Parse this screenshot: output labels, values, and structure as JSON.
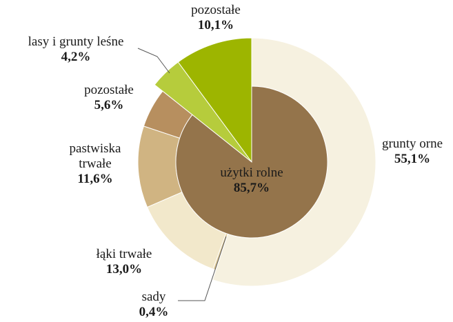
{
  "chart_data": {
    "type": "sunburst",
    "inner": {
      "labels": [
        "użytki rolne"
      ],
      "values": [
        85.7
      ],
      "value_labels": [
        "85,7%"
      ],
      "colors": [
        "#94744b"
      ]
    },
    "outer": {
      "labels": [
        "grunty orne",
        "sady",
        "łąki trwałe",
        "pastwiska trwałe",
        "pozostałe",
        "lasy i grunty leśne",
        "pozostałe"
      ],
      "values": [
        55.1,
        0.4,
        13.0,
        11.6,
        5.6,
        4.2,
        10.1
      ],
      "value_labels": [
        "55,1%",
        "0,4%",
        "13,0%",
        "11,6%",
        "5,6%",
        "4,2%",
        "10,1%"
      ],
      "colors": [
        "#f6f1e0",
        "#dfca98",
        "#f2e8cb",
        "#d0b482",
        "#b78f5f",
        "#b6cc3c",
        "#9db500"
      ]
    }
  }
}
